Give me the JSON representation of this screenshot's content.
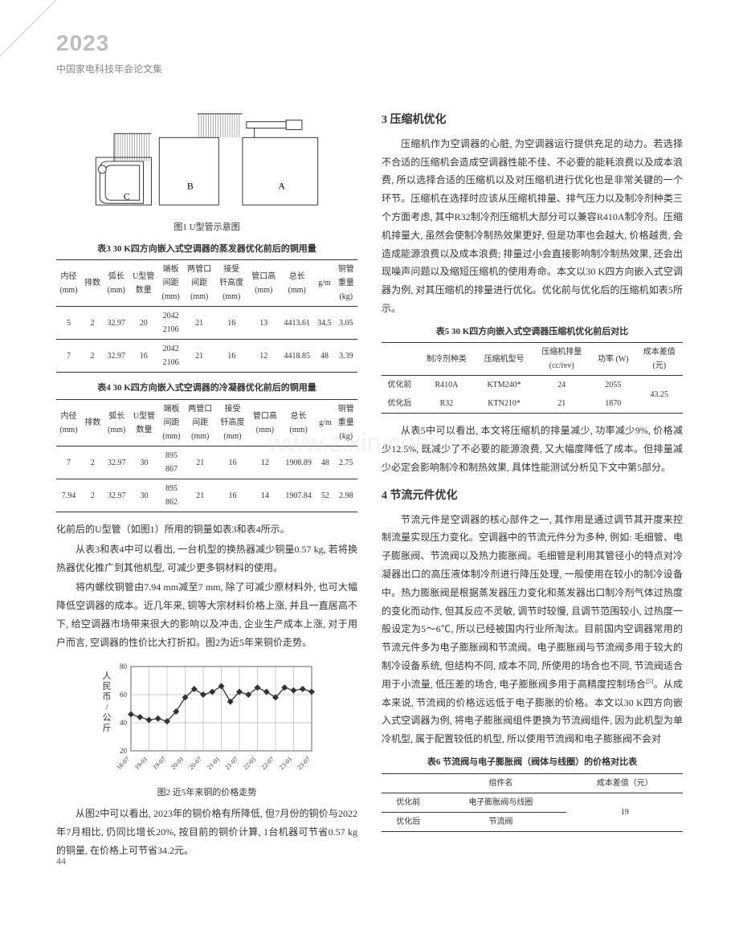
{
  "header": {
    "year": "2023",
    "subtitle": "中国家电科技年会论文集"
  },
  "watermark": "www.zixin.com.cn",
  "figure1": {
    "caption": "图1 U型管示意图",
    "labels": [
      "C",
      "B",
      "A"
    ],
    "stroke_color": "#333333",
    "background_color": "#ffffff"
  },
  "table3": {
    "caption": "表3 30 K四方向嵌入式空调器的蒸发器优化前后的铜用量",
    "headers": [
      "内径\n(mm)",
      "排数",
      "弧长\n(mm)",
      "U型管\n数量",
      "端板\n间距\n(mm)",
      "两管口\n间距\n(mm)",
      "接受\n钎高度\n(mm)",
      "管口高\n(mm)",
      "总长\n(mm)",
      "g/m",
      "铜管\n重量\n(kg)"
    ],
    "rows": [
      [
        "5",
        "2",
        "32.97",
        "20",
        "2042\n2106",
        "21",
        "16",
        "13",
        "4413.61",
        "34.5",
        "3.05"
      ],
      [
        "7",
        "2",
        "32.97",
        "16",
        "2042\n2106",
        "21",
        "16",
        "12",
        "4418.85",
        "48",
        "3.39"
      ]
    ]
  },
  "table4": {
    "caption": "表4 30 K四方向嵌入式空调器的冷凝器优化前后的铜用量",
    "headers": [
      "内径\n(mm)",
      "排数",
      "弧长\n(mm)",
      "U型管\n数量",
      "端板\n间距\n(mm)",
      "两管口\n间距\n(mm)",
      "接受\n钎高度\n(mm)",
      "管口高\n(mm)",
      "总长\n(mm)",
      "g/m",
      "铜管\n重量\n(kg)"
    ],
    "rows": [
      [
        "7",
        "2",
        "32.97",
        "30",
        "895\n867",
        "21",
        "16",
        "12",
        "1908.89",
        "48",
        "2.75"
      ],
      [
        "7.94",
        "2",
        "32.97",
        "30",
        "895\n862",
        "21",
        "16",
        "14",
        "1907.84",
        "52",
        "2.98"
      ]
    ]
  },
  "para1": "化前后的U型管（如图1）所用的铜量如表3和表4所示。",
  "para2": "从表3和表4中可以看出, 一台机型的换热器减少铜量0.57 kg, 若将换热器优化推广到其他机型, 可减少更多铜材料的使用。",
  "para3": "将内螺纹铜管由7.94 mm减至7 mm, 除了可减少原材料外, 也可大幅降低空调器的成本。近几年来, 铜等大宗材料价格上涨, 并且一直居高不下, 给空调器市场带来很大的影响以及冲击, 企业生产成本上涨, 对于用户而言, 空调器的性价比大打折扣。图2为近5年来铜价走势。",
  "figure2": {
    "caption": "图2 近5年来铜的价格走势",
    "type": "line",
    "ylabel": "人民币/公斤",
    "ylim": [
      20,
      80
    ],
    "ytick_step": 20,
    "yticks": [
      20,
      40,
      60,
      80
    ],
    "x_labels": [
      "18-07",
      "19-01",
      "19-07",
      "20-01",
      "20-07",
      "21-01",
      "21-07",
      "22-01",
      "22-07",
      "23-01",
      "23-07"
    ],
    "values": [
      46,
      44,
      42,
      43,
      41,
      48,
      58,
      64,
      60,
      62,
      66,
      55,
      62,
      60,
      65,
      62,
      58,
      65,
      63,
      64,
      62
    ],
    "line_color": "#333333",
    "marker": "diamond",
    "marker_size": 4,
    "grid_color": "#999999",
    "background_color": "#ffffff"
  },
  "para4": "从图2中可以看出, 2023年的铜价格有所降低, 但7月份的铜价与2022年7月相比, 仍同比增长20%, 按目前的铜价计算, 1台机器可节省0.57 kg的铜量, 在价格上可节省34.2元。",
  "section3": {
    "title": "3 压缩机优化",
    "para1": "压缩机作为空调器的心脏, 为空调器运行提供充足的动力。若选择不合适的压缩机会造成空调器性能不佳、不必要的能耗浪费以及成本浪费, 所以选择合适的压缩机以及对压缩机进行优化也是非常关键的一个环节。压缩机在选择时应该从压缩机排量、排气压力以及制冷剂种类三个方面考虑, 其中R32制冷剂压缩机大部分可以兼容R410A制冷剂。压缩机排量大, 虽然会使制冷制热效果更好, 但是功率也会越大, 价格越贵, 会造成能源浪费以及成本浪费; 排量过小会直接影响制冷制热效果, 还会出现噪声问题以及缩短压缩机的使用寿命。本文以30 K四方向嵌入式空调器为例, 对其压缩机的排量进行优化。优化前与优化后的压缩机如表5所示。"
  },
  "table5": {
    "caption": "表5 30 K四方向嵌入式空调器压缩机优化前后对比",
    "headers": [
      "",
      "制冷剂种类",
      "压缩机型号",
      "压缩机排量\n(cc/rev)",
      "功率 (W)",
      "成本差值\n(元)"
    ],
    "rows": [
      [
        "优化前",
        "R410A",
        "KTM240*",
        "24",
        "2055",
        ""
      ],
      [
        "优化后",
        "R32",
        "KTN210*",
        "21",
        "1870",
        ""
      ]
    ],
    "merged_last": "43.25"
  },
  "para5": "从表5中可以看出, 本文将压缩机的排量减少, 功率减少9%, 价格减少12.5%, 既减少了不必要的能源浪费, 又大幅度降低了成本。但排量减少必定会影响制冷和制热效果, 具体性能测试分析见下文中第5部分。",
  "section4": {
    "title": "4 节流元件优化",
    "para1": "节流元件是空调器的核心部件之一, 其作用是通过调节其开度来控制流量实现压力变化。空调器中的节流元件分为多种, 例如: 毛细管、电子膨胀阀、节流阀以及热力膨胀阀。毛细管是利用其管径小的特点对冷凝器出口的高压液体制冷剂进行降压处理, 一般使用在较小的制冷设备中。热力膨胀阀是根据蒸发器压力变化和蒸发器出口制冷剂气体过热度的变化而动作, 但其反应不灵敏, 调节时较慢, 且调节范围较小, 过热度一般设定为5～6℃, 所以已经被国内行业所淘汰。目前国内空调器常用的节流元件多为电子膨胀阀和节流阀。电子膨胀阀与节流阀多用于较大的制冷设备系统, 但结构不同, 成本不同, 所使用的场合也不同, 节流阀适合用于小流量, 低压差的场合, 电子膨胀阀多用于高精度控制场合[5]。从成本来说, 节流阀的价格远远低于电子膨胀的价格。本文以30 K四方向嵌入式空调器为例, 将电子膨胀阀组件更换为节流阀组件, 因为此机型为单冷机型, 属于配置较低的机型, 所以使用节流阀和电子膨胀阀不会对"
  },
  "table6": {
    "caption": "表6 节流阀与电子膨胀阀（阀体与线圈）的价格对比表",
    "headers": [
      "",
      "组件名",
      "成本差值（元）"
    ],
    "rows": [
      [
        "优化前",
        "电子膨胀阀与线圈",
        ""
      ],
      [
        "优化后",
        "节流阀",
        ""
      ]
    ],
    "merged_last": "19"
  },
  "page_num": "44"
}
